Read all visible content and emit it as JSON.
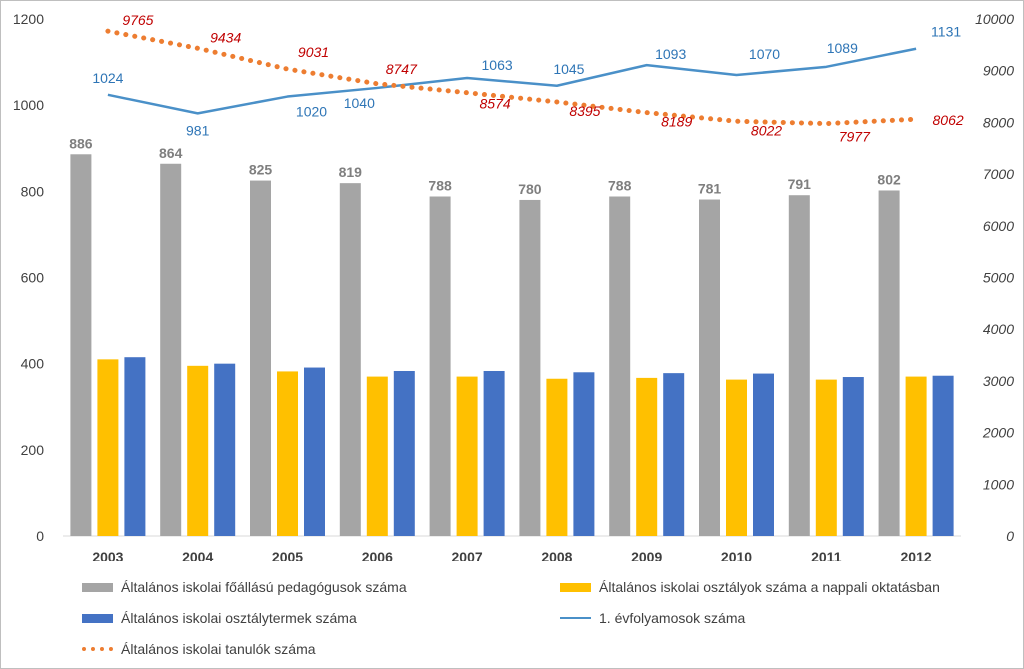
{
  "chart_data": {
    "type": "bar+line",
    "categories": [
      "2003",
      "2004",
      "2005",
      "2006",
      "2007",
      "2008",
      "2009",
      "2010",
      "2011",
      "2012"
    ],
    "left_axis": {
      "min": 0,
      "max": 1200,
      "ticks": [
        "0",
        "200",
        "400",
        "600",
        "800",
        "1000",
        "1200"
      ]
    },
    "right_axis": {
      "min": 0,
      "max": 10000,
      "ticks": [
        "0",
        "1000",
        "2000",
        "3000",
        "4000",
        "5000",
        "6000",
        "7000",
        "8000",
        "9000",
        "10000"
      ]
    },
    "series": [
      {
        "name": "Általános iskolai főállású pedagógusok száma",
        "kind": "bar",
        "axis": "left",
        "color": "#a5a5a5",
        "labels_shown": true,
        "values": [
          886,
          864,
          825,
          819,
          788,
          780,
          788,
          781,
          791,
          802
        ]
      },
      {
        "name": "Általános iskolai osztályok száma a nappali oktatásban",
        "kind": "bar",
        "axis": "left",
        "color": "#ffc000",
        "labels_shown": false,
        "values": [
          410,
          395,
          382,
          370,
          370,
          365,
          367,
          363,
          363,
          370
        ]
      },
      {
        "name": "Általános iskolai osztálytermek száma",
        "kind": "bar",
        "axis": "left",
        "color": "#4472c4",
        "labels_shown": false,
        "values": [
          415,
          400,
          391,
          383,
          383,
          380,
          378,
          377,
          369,
          372
        ]
      },
      {
        "name": "1. évfolyamosok száma",
        "kind": "line",
        "axis": "left",
        "color": "#4a90c8",
        "labels_shown": true,
        "values": [
          1024,
          981,
          1020,
          1040,
          1063,
          1045,
          1093,
          1070,
          1089,
          1131
        ]
      },
      {
        "name": "Általános iskolai tanulók száma",
        "kind": "dotted-line",
        "axis": "right",
        "color": "#ed7d31",
        "label_color": "#c00000",
        "labels_shown": true,
        "values": [
          9765,
          9434,
          9031,
          8747,
          8574,
          8395,
          8189,
          8022,
          7977,
          8062
        ]
      }
    ],
    "legend_position": "bottom",
    "grid": false
  }
}
